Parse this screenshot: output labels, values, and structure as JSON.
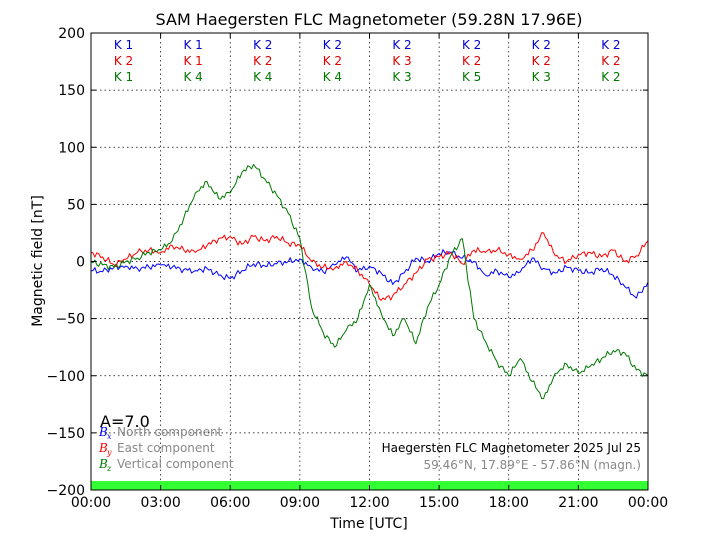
{
  "chart_data": {
    "type": "line",
    "title": "SAM Haegersten FLC Magnetometer (59.28N 17.96E)",
    "xlabel": "Time [UTC]",
    "ylabel": "Magnetic field [nT]",
    "xlim": [
      0,
      24
    ],
    "ylim": [
      -200,
      200
    ],
    "x_ticks": [
      0,
      3,
      6,
      9,
      12,
      15,
      18,
      21,
      24
    ],
    "x_tick_labels": [
      "00:00",
      "03:00",
      "06:00",
      "09:00",
      "12:00",
      "15:00",
      "18:00",
      "21:00",
      "00:00"
    ],
    "y_ticks": [
      -200,
      -150,
      -100,
      -50,
      0,
      50,
      100,
      150,
      200
    ],
    "y_tick_labels": [
      "−200",
      "−150",
      "−100",
      "−50",
      "0",
      "50",
      "100",
      "150",
      "200"
    ],
    "grid": true,
    "k_index_rows": [
      {
        "color": "#0000cc",
        "labels": [
          "K 1",
          "K 1",
          "K 2",
          "K 2",
          "K 2",
          "K 2",
          "K 2",
          "K 2"
        ]
      },
      {
        "color": "#dd0000",
        "labels": [
          "K 2",
          "K 1",
          "K 2",
          "K 2",
          "K 3",
          "K 2",
          "K 2",
          "K 2"
        ]
      },
      {
        "color": "#007700",
        "labels": [
          "K 1",
          "K 4",
          "K 4",
          "K 4",
          "K 3",
          "K 5",
          "K 3",
          "K 2"
        ]
      }
    ],
    "a_index": "A=7.0",
    "legend_placement": "bottom-left",
    "series": [
      {
        "name": "North component",
        "symbol_base": "B",
        "symbol_sub": "x",
        "color": "#0000ff",
        "x": [
          0,
          0.5,
          1,
          1.5,
          2,
          2.5,
          3,
          3.5,
          4,
          4.5,
          5,
          5.5,
          6,
          6.5,
          7,
          7.5,
          8,
          8.5,
          9,
          9.5,
          10,
          10.5,
          11,
          11.5,
          12,
          12.5,
          13,
          13.5,
          14,
          14.5,
          15,
          15.5,
          16,
          16.5,
          17,
          17.5,
          18,
          18.5,
          19,
          19.5,
          20,
          20.5,
          21,
          21.5,
          22,
          22.5,
          23,
          23.5,
          24
        ],
        "values": [
          -8,
          -9,
          -5,
          -4,
          -6,
          -5,
          -3,
          -5,
          -7,
          -8,
          -6,
          -12,
          -15,
          -8,
          -2,
          -4,
          -2,
          0,
          2,
          -5,
          -9,
          -3,
          4,
          -8,
          -4,
          -10,
          -20,
          -10,
          3,
          0,
          7,
          8,
          3,
          0,
          -12,
          -8,
          -14,
          -9,
          3,
          -6,
          -10,
          -5,
          -8,
          -10,
          -6,
          -12,
          -22,
          -32,
          -18
        ]
      },
      {
        "name": "East component",
        "symbol_base": "B",
        "symbol_sub": "y",
        "color": "#ff0000",
        "x": [
          0,
          0.5,
          1,
          1.5,
          2,
          2.5,
          3,
          3.5,
          4,
          4.5,
          5,
          5.5,
          6,
          6.5,
          7,
          7.5,
          8,
          8.5,
          9,
          9.5,
          10,
          10.5,
          11,
          11.5,
          12,
          12.5,
          13,
          13.5,
          14,
          14.5,
          15,
          15.5,
          16,
          16.5,
          17,
          17.5,
          18,
          18.5,
          19,
          19.5,
          20,
          20.5,
          21,
          21.5,
          22,
          22.5,
          23,
          23.5,
          24
        ],
        "values": [
          8,
          4,
          -3,
          2,
          8,
          10,
          8,
          14,
          10,
          8,
          14,
          20,
          22,
          15,
          22,
          18,
          22,
          16,
          14,
          0,
          -5,
          -6,
          0,
          -8,
          -20,
          -34,
          -30,
          -20,
          -10,
          2,
          4,
          8,
          -2,
          10,
          8,
          10,
          6,
          2,
          10,
          25,
          5,
          0,
          6,
          8,
          4,
          10,
          0,
          5,
          18
        ]
      },
      {
        "name": "Vertical component",
        "symbol_base": "B",
        "symbol_sub": "z",
        "color": "#007700",
        "x": [
          0,
          0.5,
          1,
          1.5,
          2,
          2.5,
          3,
          3.5,
          4,
          4.5,
          5,
          5.5,
          6,
          6.5,
          7,
          7.5,
          8,
          8.5,
          9,
          9.5,
          10,
          10.5,
          11,
          11.5,
          12,
          12.5,
          13,
          13.5,
          14,
          14.5,
          15,
          15.5,
          16,
          16.5,
          17,
          17.5,
          18,
          18.5,
          19,
          19.5,
          20,
          20.5,
          21,
          21.5,
          22,
          22.5,
          23,
          23.5,
          24
        ],
        "values": [
          0,
          -3,
          -5,
          0,
          3,
          8,
          10,
          18,
          38,
          60,
          70,
          55,
          60,
          78,
          85,
          72,
          58,
          42,
          20,
          -40,
          -62,
          -75,
          -60,
          -50,
          -20,
          -45,
          -65,
          -50,
          -72,
          -40,
          -20,
          5,
          20,
          -50,
          -70,
          -88,
          -100,
          -85,
          -105,
          -120,
          -98,
          -90,
          -98,
          -92,
          -85,
          -78,
          -80,
          -95,
          -100
        ]
      }
    ],
    "annotation_title": "Haegersten FLC Magnetometer 2025 Jul 25",
    "annotation_subtitle": "59.46°N, 17.89°E - 57.86°N (magn.)",
    "bottom_band_color": "#33ff33"
  }
}
